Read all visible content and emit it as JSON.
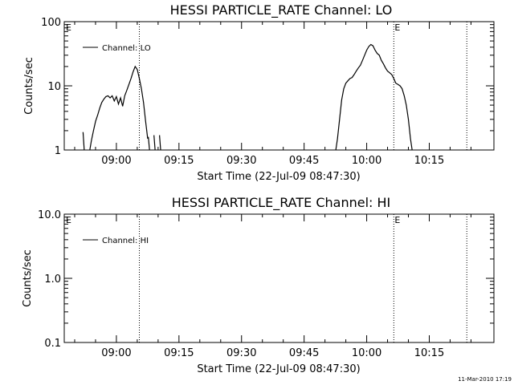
{
  "footer": {
    "timestamp": "11-Mar-2010 17:19"
  },
  "chart_data": [
    {
      "type": "line",
      "title": "HESSI PARTICLE_RATE Channel: LO",
      "xlabel": "Start Time (22-Jul-09 08:47:30)",
      "ylabel": "Counts/sec",
      "xlim": [
        "08:47:30",
        "10:30:30"
      ],
      "ylim": [
        1,
        100
      ],
      "yscale": "log",
      "xticks": [
        "09:00",
        "09:15",
        "09:30",
        "09:45",
        "10:00",
        "10:15"
      ],
      "yticks": [
        "1",
        "10",
        "100"
      ],
      "legend": {
        "label": "Channel: LO",
        "position": "top-left"
      },
      "color": "#000000",
      "markers": [
        {
          "time": "09:05:30",
          "label": ""
        },
        {
          "time": "10:06:30",
          "label": "E"
        },
        {
          "time": "10:24:00",
          "label": ""
        }
      ],
      "corner_labels": [
        "E"
      ],
      "series": [
        {
          "name": "Channel: LO",
          "segments": [
            {
              "x": [
                "08:52:00",
                "08:52:20",
                "08:52:40",
                "08:53:00"
              ],
              "y": [
                1.9,
                0.9,
                null,
                null
              ]
            },
            {
              "x": [
                "08:53:30",
                "08:54:00",
                "08:54:30",
                "08:55:00",
                "08:55:30",
                "08:56:00",
                "08:56:30",
                "08:57:00",
                "08:57:30",
                "08:58:00",
                "08:58:30",
                "08:59:00",
                "08:59:30",
                "09:00:00",
                "09:00:30",
                "09:01:00",
                "09:01:30",
                "09:02:00",
                "09:02:30",
                "09:03:00",
                "09:03:30",
                "09:04:00",
                "09:04:30",
                "09:05:00",
                "09:05:30",
                "09:06:00",
                "09:06:30",
                "09:07:00",
                "09:07:30"
              ],
              "y": [
                0.9,
                1.4,
                2.0,
                2.8,
                3.5,
                4.5,
                5.5,
                6.2,
                6.8,
                7.0,
                6.5,
                7.0,
                5.8,
                6.8,
                5.2,
                6.5,
                4.8,
                7.0,
                8.5,
                10.5,
                13.0,
                16.5,
                20.0,
                18.0,
                13.0,
                9.0,
                5.5,
                2.8,
                1.5
              ]
            },
            {
              "x": [
                "09:07:40",
                "09:08:00"
              ],
              "y": [
                1.6,
                0.9
              ]
            },
            {
              "x": [
                "09:09:00",
                "09:09:20"
              ],
              "y": [
                1.7,
                0.9
              ]
            },
            {
              "x": [
                "09:10:20",
                "09:10:40"
              ],
              "y": [
                1.7,
                0.9
              ]
            },
            {
              "x": [
                "09:52:30",
                "09:53:00",
                "09:53:30",
                "09:54:00",
                "09:54:30",
                "09:55:00",
                "09:55:30",
                "09:56:00",
                "09:56:30",
                "09:57:00",
                "09:57:30",
                "09:58:00",
                "09:58:30",
                "09:59:00",
                "09:59:30",
                "10:00:00",
                "10:00:30",
                "10:01:00",
                "10:01:30",
                "10:02:00",
                "10:02:30",
                "10:03:00",
                "10:03:30",
                "10:04:00",
                "10:04:30",
                "10:05:00",
                "10:05:30",
                "10:06:00",
                "10:06:30",
                "10:07:00",
                "10:07:30",
                "10:08:00",
                "10:08:30",
                "10:09:00",
                "10:09:30",
                "10:10:00",
                "10:10:30",
                "10:11:00"
              ],
              "y": [
                0.9,
                1.5,
                3.0,
                6.0,
                9.0,
                11.0,
                12.0,
                13.0,
                13.5,
                15.0,
                17.0,
                19.0,
                21.0,
                25.0,
                30.0,
                36.0,
                41.0,
                44.0,
                42.0,
                36.0,
                32.0,
                30.0,
                25.0,
                22.0,
                19.0,
                17.0,
                16.0,
                15.0,
                13.0,
                11.0,
                10.5,
                10.0,
                9.0,
                7.0,
                5.0,
                3.0,
                1.5,
                0.9
              ]
            }
          ]
        }
      ]
    },
    {
      "type": "line",
      "title": "HESSI PARTICLE_RATE Channel: HI",
      "xlabel": "Start Time (22-Jul-09 08:47:30)",
      "ylabel": "Counts/sec",
      "xlim": [
        "08:47:30",
        "10:30:30"
      ],
      "ylim": [
        0.1,
        10.0
      ],
      "yscale": "log",
      "xticks": [
        "09:00",
        "09:15",
        "09:30",
        "09:45",
        "10:00",
        "10:15"
      ],
      "yticks": [
        "0.1",
        "1.0",
        "10.0"
      ],
      "legend": {
        "label": "Channel: HI",
        "position": "top-left"
      },
      "color": "#000000",
      "markers": [
        {
          "time": "09:05:30",
          "label": ""
        },
        {
          "time": "10:06:30",
          "label": "E"
        },
        {
          "time": "10:24:00",
          "label": ""
        }
      ],
      "corner_labels": [
        "E"
      ],
      "series": [
        {
          "name": "Channel: HI",
          "segments": []
        }
      ]
    }
  ]
}
